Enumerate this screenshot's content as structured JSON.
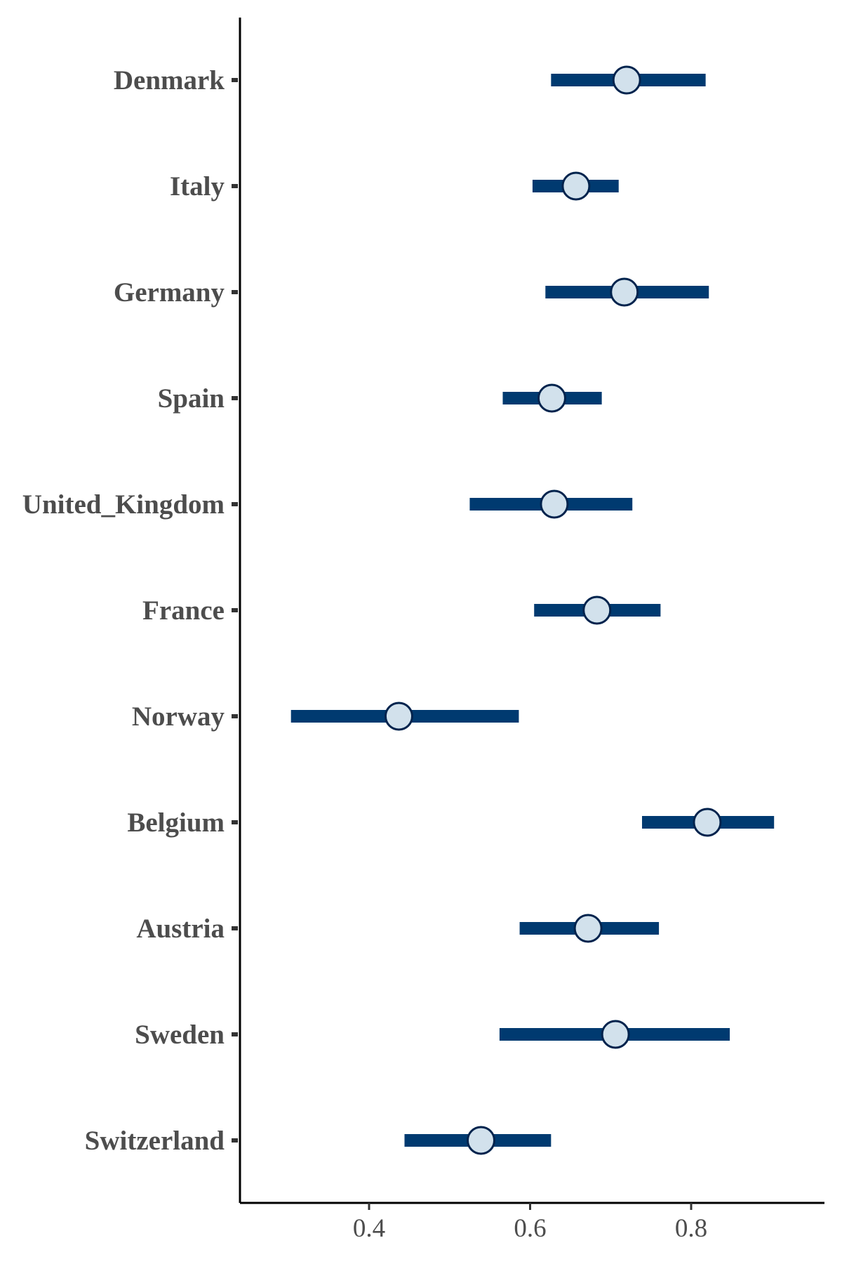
{
  "chart_data": {
    "type": "scatter",
    "subtype": "point-range",
    "title": "",
    "xlabel": "",
    "ylabel": "",
    "xlim": [
      0.24,
      0.965
    ],
    "x_ticks": [
      0.4,
      0.6,
      0.8
    ],
    "x_tick_labels": [
      "0.4",
      "0.6",
      "0.8"
    ],
    "grid": false,
    "legend": "none",
    "colors": {
      "interval": "#003a70",
      "point_fill": "#d2e1ec",
      "point_stroke": "#00234d"
    },
    "categories": [
      "Denmark",
      "Italy",
      "Germany",
      "Spain",
      "United_Kingdom",
      "France",
      "Norway",
      "Belgium",
      "Austria",
      "Sweden",
      "Switzerland"
    ],
    "series": [
      {
        "estimate": [
          0.72,
          0.657,
          0.717,
          0.627,
          0.63,
          0.683,
          0.437,
          0.82,
          0.672,
          0.706,
          0.539
        ],
        "lower": [
          0.626,
          0.603,
          0.619,
          0.566,
          0.525,
          0.605,
          0.303,
          0.739,
          0.587,
          0.562,
          0.444
        ],
        "upper": [
          0.818,
          0.71,
          0.822,
          0.689,
          0.727,
          0.762,
          0.586,
          0.903,
          0.76,
          0.848,
          0.626
        ]
      }
    ]
  }
}
